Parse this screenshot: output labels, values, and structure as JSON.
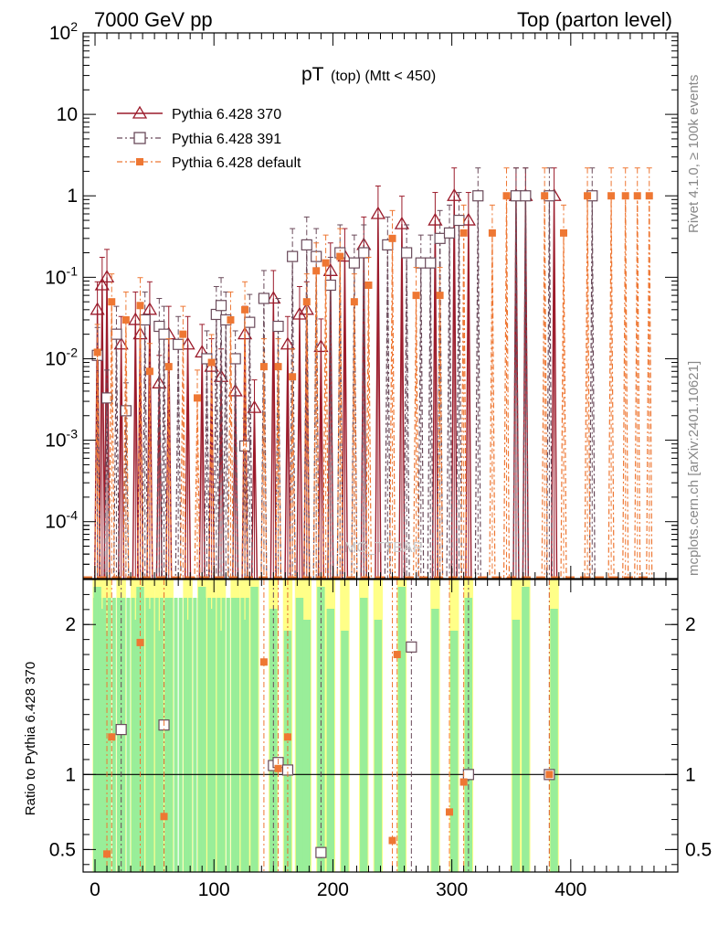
{
  "header": {
    "left": "7000 GeV pp",
    "right": "Top (parton level)"
  },
  "side_labels": {
    "rivet": "Rivet 4.1.0, ≥ 100k events",
    "mcplots": "mcplots.cern.ch [arXiv:2401.10621]"
  },
  "watermark": "MC_TTBAR",
  "chart_data": {
    "type": "scatter",
    "title_main": "pT",
    "title_sub": "(top) (Mtt < 450)",
    "xlabel": "",
    "ylabel": "",
    "xlim": [
      -10,
      490
    ],
    "ylim": [
      2e-05,
      100
    ],
    "yscale": "log",
    "x_ticks": [
      "0",
      "100",
      "200",
      "300",
      "400"
    ],
    "y_ticks": [
      "10^2",
      "10",
      "1",
      "10^-1",
      "10^-2",
      "10^-3",
      "10^-4"
    ],
    "legend": [
      "Pythia 6.428 370",
      "Pythia 6.428 391",
      "Pythia 6.428 default"
    ],
    "legend_position": "top-left",
    "series": [
      {
        "name": "Pythia 6.428 370",
        "color": "#9b1b2b",
        "marker": "triangle-open",
        "line": "solid",
        "x": [
          2,
          6,
          10,
          22,
          34,
          38,
          46,
          54,
          62,
          78,
          90,
          98,
          106,
          118,
          126,
          134,
          150,
          162,
          172,
          178,
          190,
          198,
          210,
          226,
          238,
          258,
          286,
          302,
          314,
          354,
          362,
          386
        ],
        "y": [
          0.04,
          0.08,
          0.1,
          0.015,
          0.03,
          0.02,
          0.04,
          0.005,
          0.02,
          0.015,
          0.012,
          0.008,
          0.006,
          0.004,
          0.02,
          0.0025,
          0.055,
          0.015,
          0.035,
          0.04,
          0.014,
          0.12,
          0.18,
          0.25,
          0.6,
          0.45,
          0.5,
          1.0,
          0.5,
          1.0,
          1.0,
          1.0
        ]
      },
      {
        "name": "Pythia 6.428 391",
        "color": "#6a4a5a",
        "marker": "square-open",
        "line": "dash-dot",
        "x": [
          2,
          10,
          18,
          26,
          42,
          54,
          58,
          70,
          94,
          102,
          106,
          110,
          118,
          126,
          130,
          142,
          154,
          166,
          178,
          186,
          198,
          206,
          218,
          226,
          246,
          262,
          274,
          282,
          290,
          298,
          306,
          322,
          354,
          362,
          382,
          418
        ],
        "y": [
          0.011,
          0.0033,
          0.02,
          0.0023,
          0.03,
          0.025,
          0.02,
          0.015,
          0.01,
          0.035,
          0.045,
          0.03,
          0.01,
          0.00085,
          0.028,
          0.055,
          0.025,
          0.18,
          0.25,
          0.18,
          0.08,
          0.2,
          0.15,
          0.2,
          0.25,
          0.2,
          0.15,
          0.15,
          0.3,
          0.35,
          0.5,
          1.0,
          1.0,
          1.0,
          1.0,
          1.0
        ]
      },
      {
        "name": "Pythia 6.428 default",
        "color": "#ee7733",
        "marker": "square-filled",
        "line": "dash-dot",
        "x": [
          2,
          14,
          26,
          38,
          46,
          62,
          74,
          86,
          98,
          114,
          126,
          142,
          154,
          166,
          178,
          186,
          194,
          206,
          218,
          230,
          250,
          270,
          290,
          310,
          334,
          346,
          378,
          394,
          414,
          434,
          446,
          456,
          466
        ],
        "y": [
          0.012,
          0.05,
          0.03,
          0.045,
          0.007,
          0.008,
          0.02,
          0.0033,
          0.009,
          0.03,
          0.04,
          0.008,
          0.008,
          0.006,
          0.05,
          0.12,
          0.15,
          0.18,
          0.05,
          0.08,
          0.3,
          0.06,
          0.06,
          0.35,
          0.35,
          1.0,
          1.0,
          0.35,
          1.0,
          1.0,
          1.0,
          1.0,
          1.0
        ]
      }
    ],
    "ratio_panel": {
      "ylabel": "Ratio to Pythia 6.428 370",
      "ylim": [
        0.35,
        2.3
      ],
      "y_ticks": [
        "2",
        "1",
        "0.5"
      ],
      "reference_line": 1,
      "series": [
        {
          "name": "Pythia 6.428 391",
          "x": [
            22,
            58,
            150,
            154,
            162,
            190,
            266,
            314,
            382
          ],
          "y": [
            1.3,
            1.33,
            1.06,
            1.08,
            1.03,
            0.48,
            1.85,
            1.0,
            1.0
          ]
        },
        {
          "name": "Pythia 6.428 default",
          "x": [
            10,
            14,
            38,
            58,
            142,
            154,
            162,
            250,
            254,
            298,
            310,
            382
          ],
          "y": [
            0.47,
            1.25,
            1.88,
            0.72,
            1.75,
            1.04,
            1.25,
            0.56,
            1.8,
            0.75,
            0.95,
            1.0
          ]
        }
      ]
    }
  }
}
